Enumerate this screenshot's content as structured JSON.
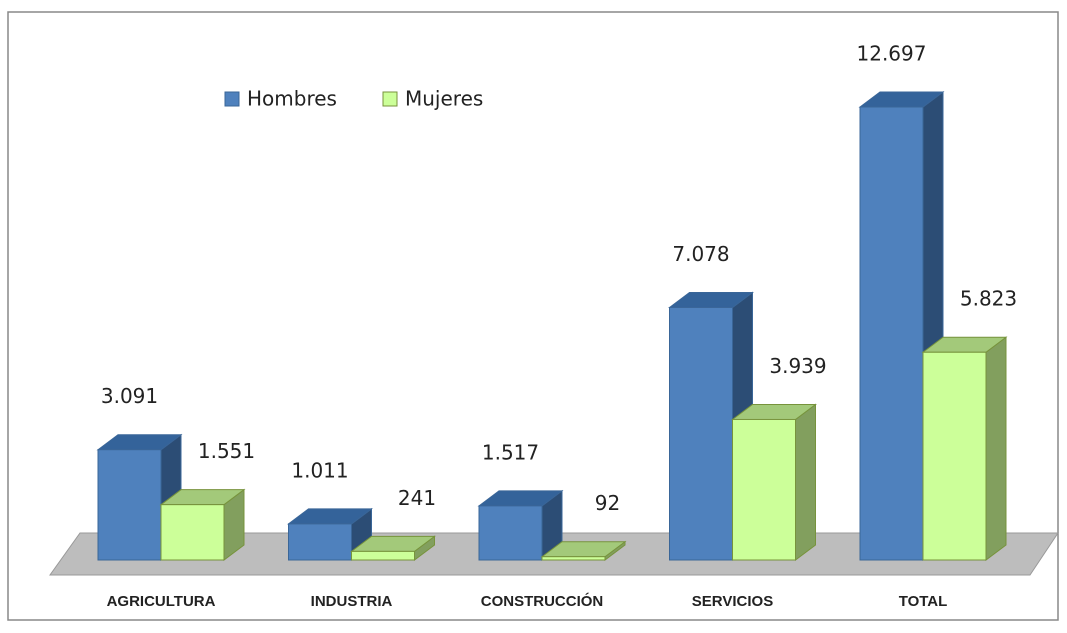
{
  "chart_data": {
    "type": "bar3d",
    "categories": [
      "AGRICULTURA",
      "INDUSTRIA",
      "CONSTRUCCIÓN",
      "SERVICIOS",
      "TOTAL"
    ],
    "series": [
      {
        "name": "Hombres",
        "color": "#4f81bd",
        "values": [
          3091,
          1011,
          1517,
          7078,
          12697
        ],
        "value_labels": [
          "3.091",
          "1.011",
          "1.517",
          "7.078",
          "12.697"
        ]
      },
      {
        "name": "Mujeres",
        "color": "#ccff99",
        "values": [
          1551,
          241,
          92,
          3939,
          5823
        ],
        "value_labels": [
          "1.551",
          "241",
          "92",
          "3.939",
          "5.823"
        ]
      }
    ],
    "legend": "top-left"
  }
}
